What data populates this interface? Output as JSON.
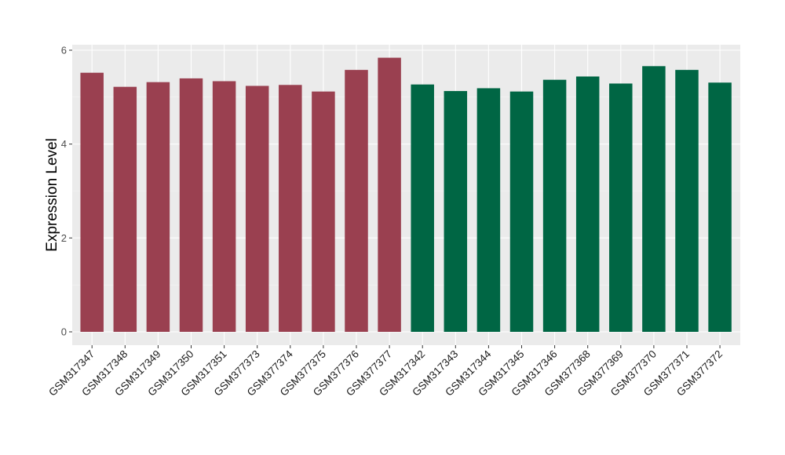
{
  "chart_data": {
    "type": "bar",
    "title": "",
    "xlabel": "",
    "ylabel": "Expression Level",
    "ylim": [
      0,
      6
    ],
    "yticks": [
      0,
      2,
      4,
      6
    ],
    "grid": true,
    "legend": "none",
    "background_color": "#ebebeb",
    "categories": [
      "GSM317347",
      "GSM317348",
      "GSM317349",
      "GSM317350",
      "GSM317351",
      "GSM377373",
      "GSM377374",
      "GSM377375",
      "GSM377376",
      "GSM377377",
      "GSM317342",
      "GSM317343",
      "GSM317344",
      "GSM317345",
      "GSM317346",
      "GSM377368",
      "GSM377369",
      "GSM377370",
      "GSM377371",
      "GSM377372"
    ],
    "values": [
      5.52,
      5.22,
      5.32,
      5.4,
      5.34,
      5.24,
      5.26,
      5.12,
      5.58,
      5.84,
      5.27,
      5.13,
      5.19,
      5.12,
      5.37,
      5.44,
      5.29,
      5.66,
      5.58,
      5.31
    ],
    "colors": [
      "#9a4050",
      "#9a4050",
      "#9a4050",
      "#9a4050",
      "#9a4050",
      "#9a4050",
      "#9a4050",
      "#9a4050",
      "#9a4050",
      "#9a4050",
      "#006644",
      "#006644",
      "#006644",
      "#006644",
      "#006644",
      "#006644",
      "#006644",
      "#006644",
      "#006644",
      "#006644"
    ]
  }
}
